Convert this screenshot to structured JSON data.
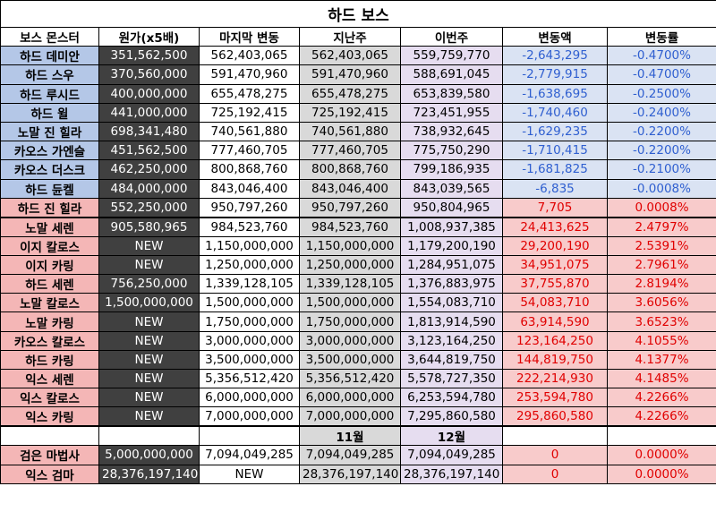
{
  "title": "하드 보스",
  "headers": [
    "보스 몬스터",
    "원가(x5배)",
    "마지막 변동",
    "지난주",
    "이번주",
    "변동액",
    "변동률"
  ],
  "rows": [
    {
      "name": "하드 데미안",
      "orig": "351,562,500",
      "last": "562,403,065",
      "prev": "562,403,065",
      "cur": "559,759,770",
      "delta": "-2,643,295",
      "rate": "-0.4700%"
    },
    {
      "name": "하드 스우",
      "orig": "370,560,000",
      "last": "591,470,960",
      "prev": "591,470,960",
      "cur": "588,691,045",
      "delta": "-2,779,915",
      "rate": "-0.4700%"
    },
    {
      "name": "하드 루시드",
      "orig": "400,000,000",
      "last": "655,478,275",
      "prev": "655,478,275",
      "cur": "653,839,580",
      "delta": "-1,638,695",
      "rate": "-0.2500%"
    },
    {
      "name": "하드 윌",
      "orig": "441,000,000",
      "last": "725,192,415",
      "prev": "725,192,415",
      "cur": "723,451,955",
      "delta": "-1,740,460",
      "rate": "-0.2400%"
    },
    {
      "name": "노말 진 힐라",
      "orig": "698,341,480",
      "last": "740,561,880",
      "prev": "740,561,880",
      "cur": "738,932,645",
      "delta": "-1,629,235",
      "rate": "-0.2200%"
    },
    {
      "name": "카오스 가엔슬",
      "orig": "451,562,500",
      "last": "777,460,705",
      "prev": "777,460,705",
      "cur": "775,750,290",
      "delta": "-1,710,415",
      "rate": "-0.2200%"
    },
    {
      "name": "카오스 더스크",
      "orig": "462,250,000",
      "last": "800,868,760",
      "prev": "800,868,760",
      "cur": "799,186,935",
      "delta": "-1,681,825",
      "rate": "-0.2100%"
    },
    {
      "name": "하드 듄켈",
      "orig": "484,000,000",
      "last": "843,046,400",
      "prev": "843,046,400",
      "cur": "843,039,565",
      "delta": "-6,835",
      "rate": "-0.0008%"
    },
    {
      "name": "하드 진 힐라",
      "orig": "552,250,000",
      "last": "950,797,260",
      "prev": "950,797,260",
      "cur": "950,804,965",
      "delta": "7,705",
      "rate": "0.0008%"
    },
    {
      "name": "노말 세렌",
      "orig": "905,580,965",
      "last": "984,523,760",
      "prev": "984,523,760",
      "cur": "1,008,937,385",
      "delta": "24,413,625",
      "rate": "2.4797%"
    },
    {
      "name": "이지 칼로스",
      "orig": "NEW",
      "last": "1,150,000,000",
      "prev": "1,150,000,000",
      "cur": "1,179,200,190",
      "delta": "29,200,190",
      "rate": "2.5391%"
    },
    {
      "name": "이지 카링",
      "orig": "NEW",
      "last": "1,250,000,000",
      "prev": "1,250,000,000",
      "cur": "1,284,951,075",
      "delta": "34,951,075",
      "rate": "2.7961%"
    },
    {
      "name": "하드 세렌",
      "orig": "756,250,000",
      "last": "1,339,128,105",
      "prev": "1,339,128,105",
      "cur": "1,376,883,975",
      "delta": "37,755,870",
      "rate": "2.8194%"
    },
    {
      "name": "노말 칼로스",
      "orig": "1,500,000,000",
      "last": "1,500,000,000",
      "prev": "1,500,000,000",
      "cur": "1,554,083,710",
      "delta": "54,083,710",
      "rate": "3.6056%"
    },
    {
      "name": "노말 카링",
      "orig": "NEW",
      "last": "1,750,000,000",
      "prev": "1,750,000,000",
      "cur": "1,813,914,590",
      "delta": "63,914,590",
      "rate": "3.6523%"
    },
    {
      "name": "카오스 칼로스",
      "orig": "NEW",
      "last": "3,000,000,000",
      "prev": "3,000,000,000",
      "cur": "3,123,164,250",
      "delta": "123,164,250",
      "rate": "4.1055%"
    },
    {
      "name": "하드 카링",
      "orig": "NEW",
      "last": "3,500,000,000",
      "prev": "3,500,000,000",
      "cur": "3,644,819,750",
      "delta": "144,819,750",
      "rate": "4.1377%"
    },
    {
      "name": "익스 세렌",
      "orig": "NEW",
      "last": "5,356,512,420",
      "prev": "5,356,512,420",
      "cur": "5,578,727,350",
      "delta": "222,214,930",
      "rate": "4.1485%"
    },
    {
      "name": "익스 칼로스",
      "orig": "NEW",
      "last": "6,000,000,000",
      "prev": "6,000,000,000",
      "cur": "6,253,594,780",
      "delta": "253,594,780",
      "rate": "4.2266%"
    },
    {
      "name": "익스 카링",
      "orig": "NEW",
      "last": "7,000,000,000",
      "prev": "7,000,000,000",
      "cur": "7,295,860,580",
      "delta": "295,860,580",
      "rate": "4.2266%"
    }
  ],
  "month_headers": {
    "prev": "11월",
    "cur": "12월"
  },
  "monthly_rows": [
    {
      "name": "검은 마법사",
      "orig": "5,000,000,000",
      "last": "7,094,049,285",
      "prev": "7,094,049,285",
      "cur": "7,094,049,285",
      "delta": "0",
      "rate": "0.0000%"
    },
    {
      "name": "익스 검마",
      "orig": "28,376,197,140",
      "last": "NEW",
      "prev": "28,376,197,140",
      "cur": "28,376,197,140",
      "delta": "0",
      "rate": "0.0000%"
    }
  ],
  "colors": {
    "negative": "#2f5fd0",
    "positive": "#e00000",
    "name_down": "#b4c7e7",
    "name_up": "#f4b6b6"
  }
}
